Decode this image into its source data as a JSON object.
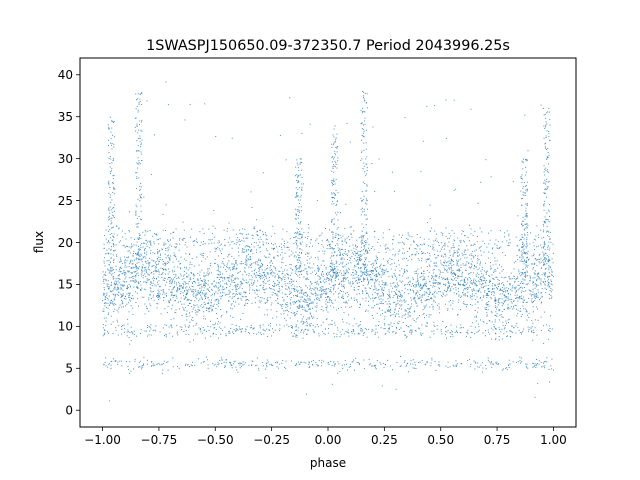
{
  "chart_data": {
    "type": "scatter",
    "title": "1SWASPJ150650.09-372350.7 Period 2043996.25s",
    "xlabel": "phase",
    "ylabel": "flux",
    "xlim": [
      -1.1,
      1.1
    ],
    "ylim": [
      -2,
      42
    ],
    "x_ticks": [
      -1.0,
      -0.75,
      -0.5,
      -0.25,
      0.0,
      0.25,
      0.5,
      0.75,
      1.0
    ],
    "x_tick_labels": [
      "−1.00",
      "−0.75",
      "−0.50",
      "−0.25",
      "0.00",
      "0.25",
      "0.50",
      "0.75",
      "1.00"
    ],
    "y_ticks": [
      0,
      5,
      10,
      15,
      20,
      25,
      30,
      35,
      40
    ],
    "y_tick_labels": [
      "0",
      "5",
      "10",
      "15",
      "20",
      "25",
      "30",
      "35",
      "40"
    ],
    "grid": false,
    "legend": "none",
    "marker_color": "#1f77b4",
    "series": [
      {
        "x_range": [
          -1.0,
          1.0
        ],
        "y_range": [
          0,
          40
        ],
        "components": [
          {
            "description_level": "main band",
            "y_center": 15,
            "y_spread": 3
          },
          {
            "description_level": "upper band",
            "y_center": 20,
            "y_spread": 1.5
          },
          {
            "description_level": "low band 1",
            "y_center": 9.5,
            "y_spread": 0.7
          },
          {
            "description_level": "low band 2",
            "y_center": 5.5,
            "y_spread": 0.5
          }
        ],
        "peaks": [
          {
            "x": -0.96,
            "y_top": 35
          },
          {
            "x": -0.84,
            "y_top": 38
          },
          {
            "x": -0.13,
            "y_top": 30
          },
          {
            "x": 0.03,
            "y_top": 34
          },
          {
            "x": 0.16,
            "y_top": 38
          },
          {
            "x": 0.87,
            "y_top": 30
          },
          {
            "x": 0.97,
            "y_top": 36
          }
        ]
      }
    ]
  }
}
